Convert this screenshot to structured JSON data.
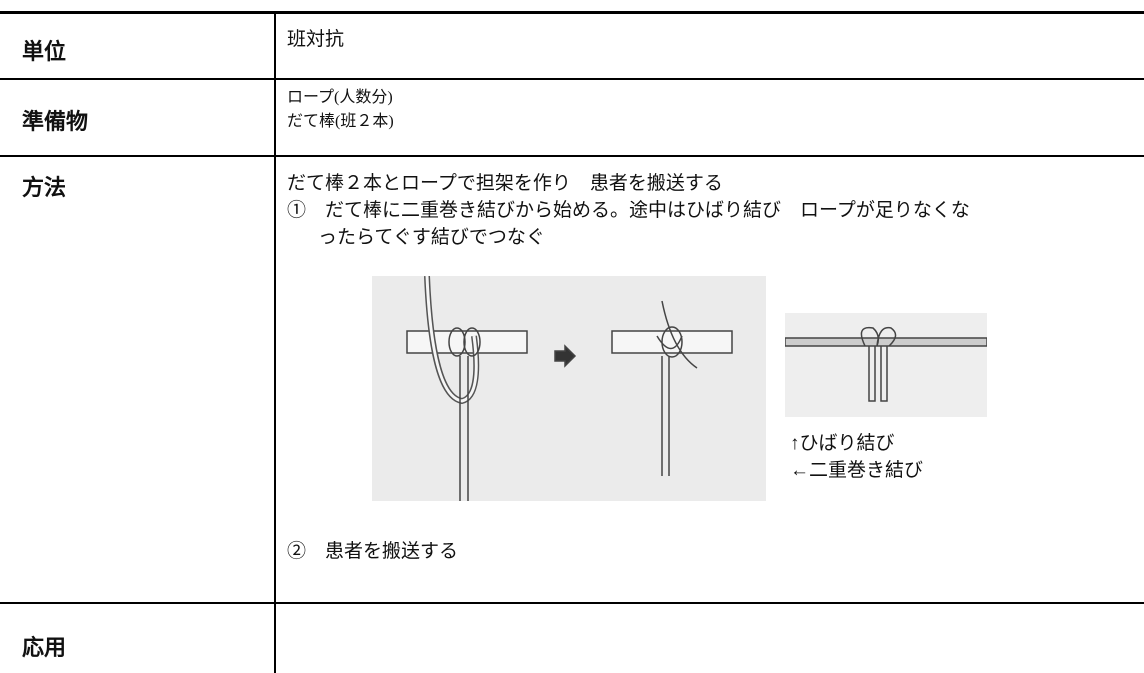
{
  "table": {
    "rows": [
      {
        "label": "単位",
        "lines": [
          "班対抗"
        ]
      },
      {
        "label": "準備物",
        "lines": [
          "ロープ(人数分)",
          "だて棒(班２本)"
        ]
      },
      {
        "label": "方法",
        "lines": [
          "だて棒２本とロープで担架を作り　患者を搬送する",
          "①　だて棒に二重巻き結びから始める。途中はひばり結び　ロープが足りなくな",
          "ったらてぐす結びでつなぐ"
        ],
        "captions": [
          "↑ひばり結び",
          "←二重巻き結び"
        ],
        "step2": "②　患者を搬送する"
      },
      {
        "label": "応用",
        "lines": []
      }
    ]
  }
}
